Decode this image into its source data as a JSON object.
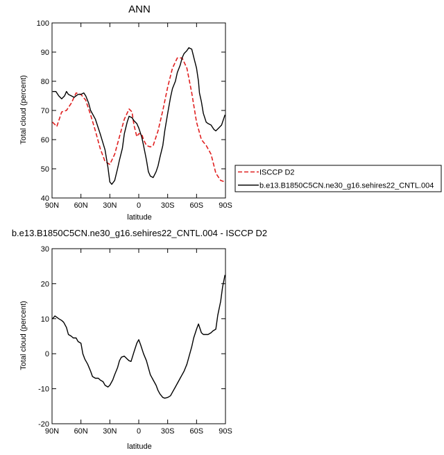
{
  "colors": {
    "isccp": "#e01f1f",
    "model": "#000000"
  },
  "chart_data": [
    {
      "type": "line",
      "title": "ANN",
      "xlabel": "latitude",
      "ylabel": "Total cloud (percent)",
      "xlim": [
        90,
        -90
      ],
      "ylim": [
        40,
        100
      ],
      "x_ticks": [
        90,
        60,
        30,
        0,
        -30,
        -60,
        -90
      ],
      "x_tick_labels": [
        "90N",
        "60N",
        "30N",
        "0",
        "30S",
        "60S",
        "90S"
      ],
      "y_ticks": [
        40,
        50,
        60,
        70,
        80,
        90,
        100
      ],
      "y_tick_labels": [
        "40",
        "50",
        "60",
        "70",
        "80",
        "90",
        "100"
      ],
      "grid": false,
      "legend_position": "right",
      "series": [
        {
          "name": "ISCCP D2",
          "style": "dashed",
          "color": "#e01f1f",
          "x": [
            89.5,
            85,
            80,
            75,
            70,
            65,
            60,
            55,
            50,
            45,
            40,
            35,
            30,
            25,
            20,
            15,
            10,
            7,
            5,
            2,
            0,
            -3,
            -5,
            -8,
            -12,
            -15,
            -20,
            -25,
            -30,
            -35,
            -40,
            -45,
            -50,
            -55,
            -60,
            -65,
            -70,
            -75,
            -80,
            -85,
            -89.5
          ],
          "y": [
            66,
            64.5,
            69.5,
            70,
            72.5,
            76,
            75.5,
            73.5,
            68.5,
            63,
            57,
            52.5,
            51.5,
            55,
            61,
            67,
            70.5,
            69.5,
            65,
            61,
            62,
            62,
            60,
            58,
            57.5,
            58,
            63,
            70,
            78,
            84.5,
            88,
            88,
            84.5,
            76,
            66,
            60,
            58,
            55,
            48.5,
            46,
            45.5
          ]
        },
        {
          "name": "b.e13.B1850C5CN.ne30_g16.sehires22_CNTL.004",
          "style": "solid",
          "color": "#000000",
          "x": [
            89.5,
            86,
            83,
            80,
            77,
            75,
            73,
            70,
            67,
            63,
            60,
            57,
            55,
            52,
            50,
            45,
            40,
            35,
            32,
            30,
            28,
            25,
            22,
            20,
            17,
            15,
            12,
            10,
            7,
            5,
            2,
            0,
            -3,
            -5,
            -8,
            -10,
            -12,
            -15,
            -18,
            -20,
            -22,
            -25,
            -27,
            -30,
            -33,
            -35,
            -38,
            -40,
            -43,
            -45,
            -47,
            -50,
            -52,
            -55,
            -58,
            -60,
            -62,
            -63,
            -65,
            -67,
            -70,
            -72,
            -75,
            -78,
            -80,
            -83,
            -86,
            -89.5
          ],
          "y": [
            76.5,
            76.5,
            75,
            74,
            75,
            76.5,
            75.5,
            75,
            74.5,
            75.5,
            75.5,
            76,
            75,
            72.5,
            70,
            67,
            62,
            56.5,
            50.5,
            45.5,
            44.7,
            46,
            50,
            53,
            57,
            62,
            66,
            68,
            67.5,
            66.5,
            65.5,
            64,
            61,
            58,
            53,
            49,
            47.5,
            47,
            49,
            51,
            54,
            58,
            63,
            69,
            74.5,
            77.5,
            80,
            83,
            85.5,
            88,
            89.5,
            90.5,
            91.5,
            91,
            87,
            84.5,
            80,
            76,
            73,
            69,
            66,
            65.5,
            65,
            63.5,
            63,
            64,
            65,
            68.5
          ]
        }
      ]
    },
    {
      "type": "line",
      "title": "b.e13.B1850C5CN.ne30_g16.sehires22_CNTL.004 - ISCCP D2",
      "xlabel": "latitude",
      "ylabel": "Total cloud (percent)",
      "xlim": [
        90,
        -90
      ],
      "ylim": [
        -20,
        30
      ],
      "x_ticks": [
        90,
        60,
        30,
        0,
        -30,
        -60,
        -90
      ],
      "x_tick_labels": [
        "90N",
        "60N",
        "30N",
        "0",
        "30S",
        "60S",
        "90S"
      ],
      "y_ticks": [
        -20,
        -10,
        0,
        10,
        20,
        30
      ],
      "y_tick_labels": [
        "-20",
        "-10",
        "0",
        "10",
        "20",
        "30"
      ],
      "grid": false,
      "series": [
        {
          "style": "solid",
          "color": "#000000",
          "x": [
            89.5,
            87,
            83,
            80,
            78,
            75,
            73,
            70,
            68,
            65,
            63,
            60,
            58,
            56,
            53,
            50,
            48,
            45,
            42,
            40,
            37,
            35,
            32,
            30,
            27,
            25,
            22,
            20,
            18,
            15,
            12,
            10,
            8,
            5,
            2,
            0,
            -2,
            -5,
            -8,
            -10,
            -12,
            -15,
            -18,
            -20,
            -22,
            -25,
            -27,
            -30,
            -33,
            -35,
            -38,
            -40,
            -43,
            -45,
            -47,
            -50,
            -52,
            -55,
            -57,
            -60,
            -62,
            -65,
            -67,
            -70,
            -72,
            -75,
            -77,
            -80,
            -82,
            -85,
            -87,
            -89.5
          ],
          "y": [
            10,
            10.8,
            10,
            9.5,
            9,
            7.5,
            5.5,
            5,
            4.5,
            4.5,
            3.5,
            3,
            0,
            -1.5,
            -3,
            -5,
            -6.5,
            -7,
            -7,
            -7.5,
            -8,
            -9,
            -9.5,
            -9,
            -7.5,
            -6,
            -4,
            -2,
            -1,
            -0.7,
            -1.5,
            -2,
            -2.2,
            0.5,
            3,
            4,
            2.5,
            0,
            -2,
            -4,
            -6,
            -7.5,
            -9,
            -10.5,
            -11.5,
            -12.5,
            -12.7,
            -12.5,
            -12,
            -11,
            -9.5,
            -8.5,
            -7,
            -6,
            -5,
            -3,
            -1,
            2,
            4.5,
            7,
            8.5,
            6,
            5.5,
            5.5,
            5.5,
            6,
            6.5,
            7,
            11,
            15,
            19,
            22.5
          ]
        }
      ]
    }
  ]
}
